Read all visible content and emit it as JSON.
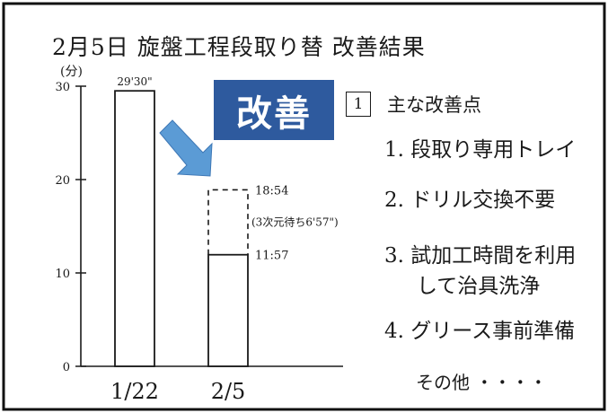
{
  "title": "2月5日 旋盤工程段取り替 改善結果",
  "badge": "改善",
  "annotation_arrow_color": "#5b9bd5",
  "badge_color": "#2e5a9e",
  "chart_data": {
    "type": "bar",
    "title": "2月5日 旋盤工程段取り替 改善結果",
    "ylabel": "(分)",
    "ylim": [
      0,
      30
    ],
    "yticks": [
      "0",
      "10",
      "20",
      "30"
    ],
    "categories": [
      "1/22",
      "2/5"
    ],
    "values": [
      29.5,
      11.95
    ],
    "value_labels": [
      "29'30\"",
      "11:57"
    ],
    "stacked_dashed": {
      "category": "2/5",
      "top_value": 18.9,
      "top_label": "18:54",
      "note": "(3次元待ち6'57\")"
    },
    "grid": false,
    "legend": "none"
  },
  "notes": {
    "section_number": "1",
    "section_title": "主な改善点",
    "items": [
      "1. 段取り専用トレイ",
      "2. ドリル交換不要",
      "3. 試加工時間を利用",
      "して治具洗浄",
      "4. グリース事前準備"
    ],
    "other": "その他 ・・・・"
  }
}
